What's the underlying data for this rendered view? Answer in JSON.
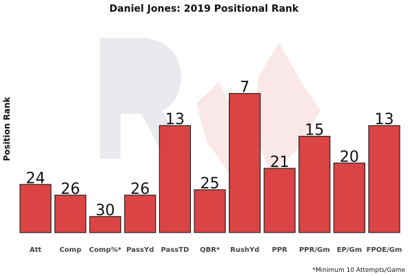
{
  "chart_data": {
    "type": "bar",
    "title": "Daniel Jones: 2019 Positional Rank",
    "xlabel": "",
    "ylabel": "Position Rank",
    "categories": [
      "Att",
      "Comp",
      "Comp%*",
      "PassYd",
      "PassTD",
      "QBR*",
      "RushYd",
      "PPR",
      "PPR/Gm",
      "EP/Gm",
      "FPOE/Gm"
    ],
    "values": [
      24,
      26,
      30,
      26,
      13,
      25,
      7,
      21,
      15,
      20,
      13
    ],
    "value_labels": [
      "24",
      "26",
      "30",
      "26",
      "13",
      "25",
      "7",
      "21",
      "15",
      "20",
      "13"
    ],
    "scale_note": "inverted: rank 1 = tallest bar",
    "rank_range": [
      1,
      32
    ],
    "grid": false,
    "legend": "none",
    "bar_color": "#d93a3a",
    "bar_edge_color": "#222222",
    "footnote": "*Minimum 10 Attempts/Game"
  }
}
